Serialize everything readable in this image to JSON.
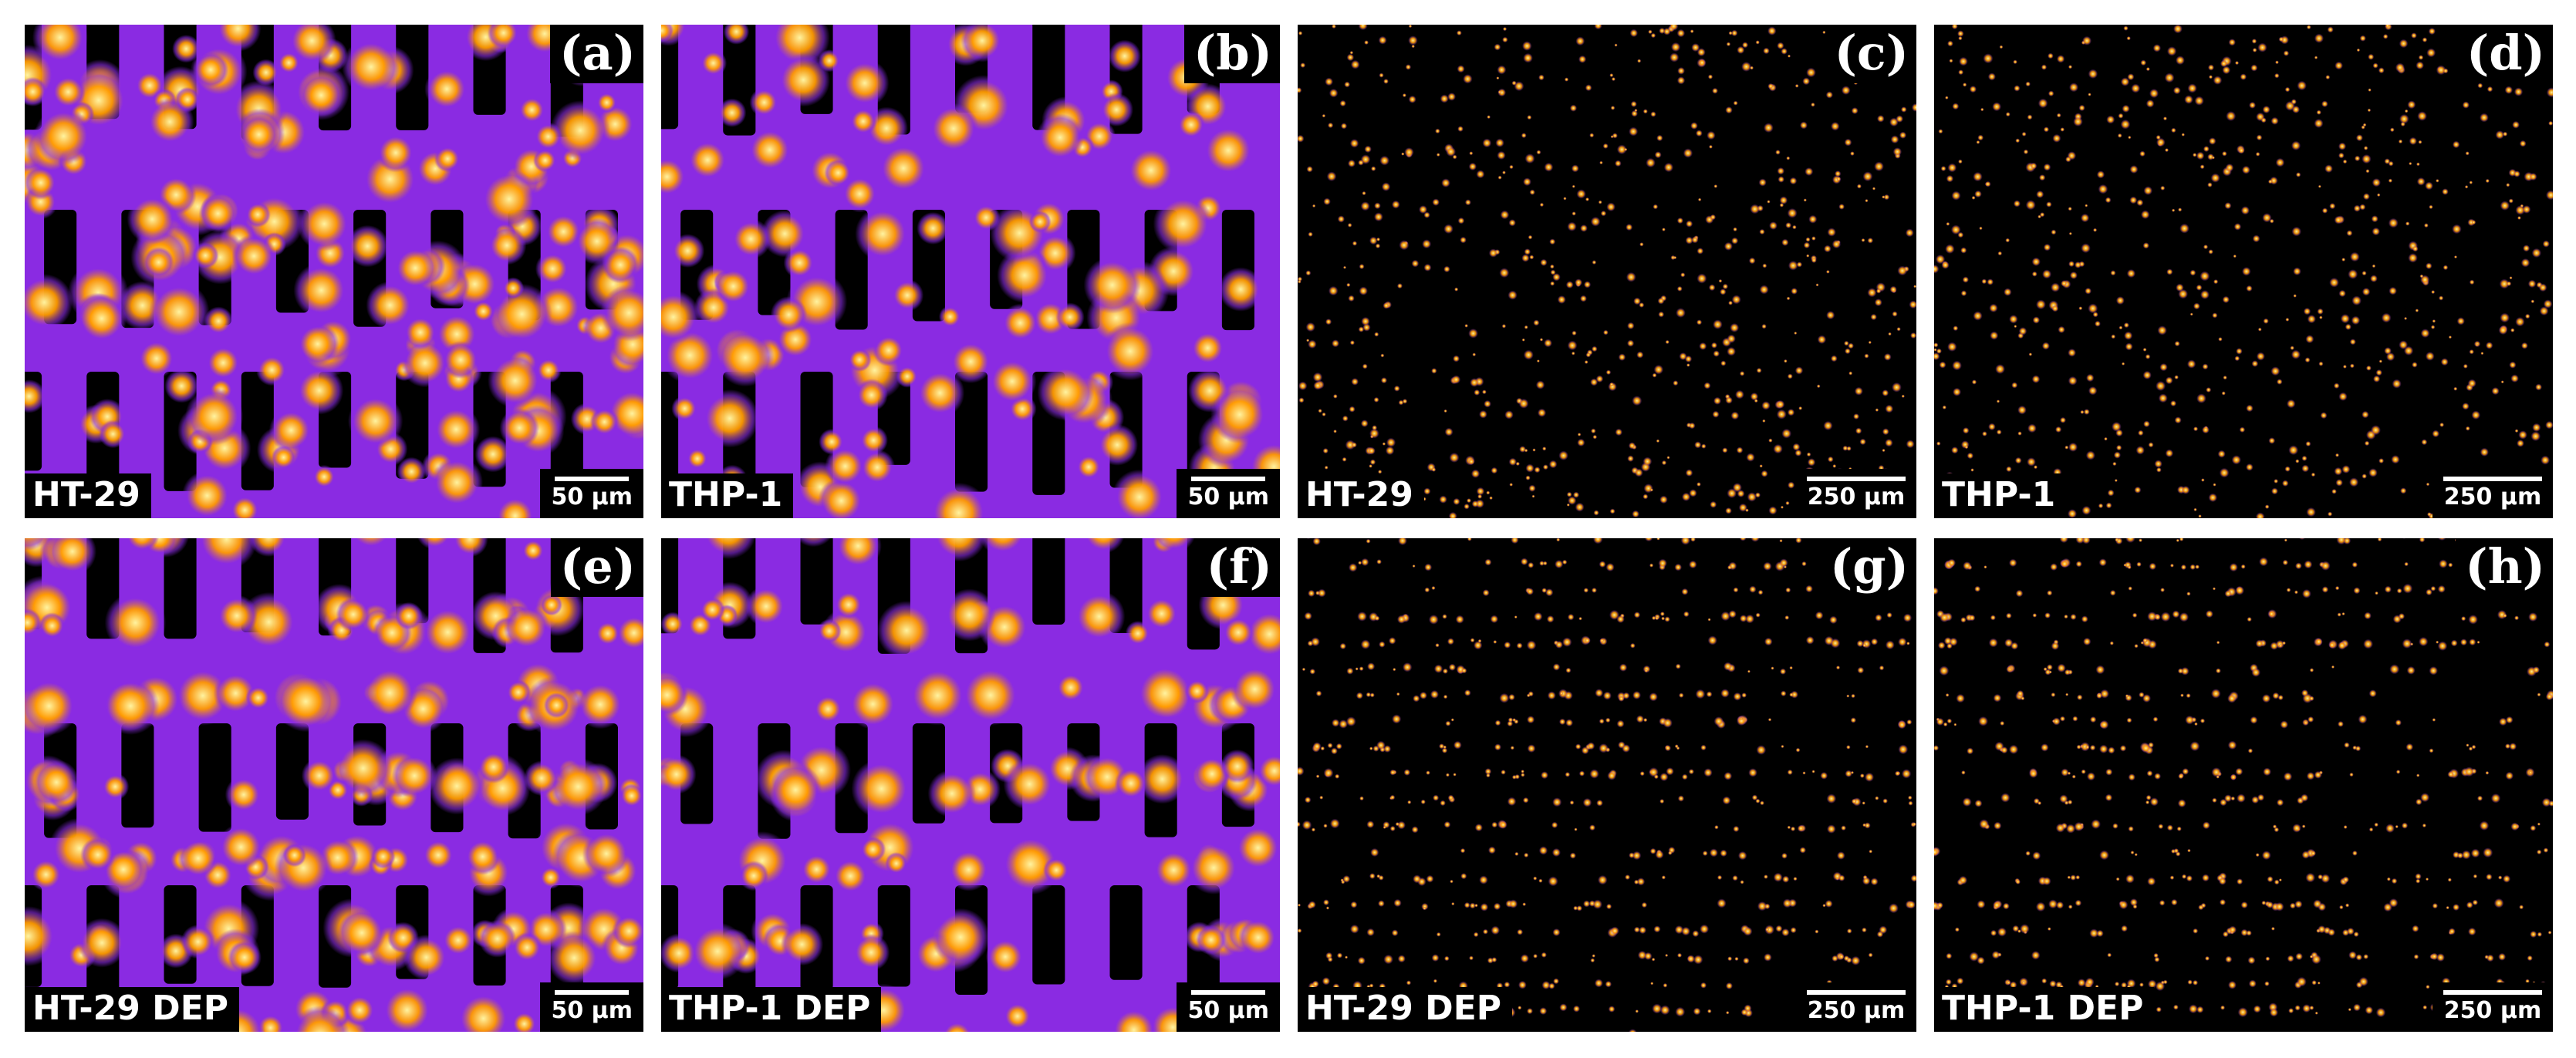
{
  "panels": [
    {
      "letter": "(a)",
      "sample": "HT-29",
      "scale": "50 µm",
      "image": "fluorescence micrograph, large cells on electrode array, HT-29"
    },
    {
      "letter": "(b)",
      "sample": "THP-1",
      "scale": "50 µm",
      "image": "fluorescence micrograph, cells on interdigitated electrodes, THP-1"
    },
    {
      "letter": "(c)",
      "sample": "HT-29",
      "scale": "250 µm",
      "image": "fluorescence micrograph, sparse scattered cells, HT-29"
    },
    {
      "letter": "(d)",
      "sample": "THP-1",
      "scale": "250 µm",
      "image": "fluorescence micrograph, sparse scattered cells, THP-1"
    },
    {
      "letter": "(e)",
      "sample": "HT-29 DEP",
      "scale": "50 µm",
      "image": "fluorescence micrograph, cells aligned by DEP, HT-29"
    },
    {
      "letter": "(f)",
      "sample": "THP-1 DEP",
      "scale": "50 µm",
      "image": "fluorescence micrograph, cells aligned by DEP, THP-1"
    },
    {
      "letter": "(g)",
      "sample": "HT-29 DEP",
      "scale": "250 µm",
      "image": "fluorescence micrograph, cells in DEP rows, HT-29"
    },
    {
      "letter": "(h)",
      "sample": "THP-1 DEP",
      "scale": "250 µm",
      "image": "fluorescence micrograph, cells in DEP rows, THP-1"
    }
  ],
  "colormap": {
    "background": "#000000",
    "low": "#2a0a5e",
    "mid": "#8a2be2",
    "high": "#ff9a00",
    "peak": "#fff3a0"
  }
}
